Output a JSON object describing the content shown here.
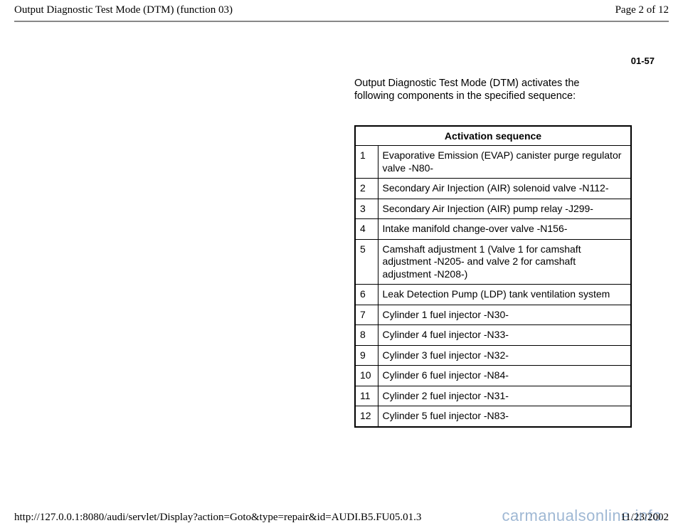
{
  "header": {
    "title": "Output Diagnostic Test Mode (DTM) (function 03)",
    "page_label": "Page 2 of 12"
  },
  "section_number": "01-57",
  "intro_text": "Output Diagnostic Test Mode (DTM) activates the following components in the specified sequence:",
  "table": {
    "header": "Activation sequence",
    "rows": [
      {
        "n": "1",
        "desc": "Evaporative Emission (EVAP) canister purge regulator valve -N80-"
      },
      {
        "n": "2",
        "desc": "Secondary Air Injection (AIR) solenoid valve -N112-"
      },
      {
        "n": "3",
        "desc": "Secondary Air Injection (AIR) pump relay -J299-"
      },
      {
        "n": "4",
        "desc": "Intake manifold change-over valve -N156-"
      },
      {
        "n": "5",
        "desc": "Camshaft adjustment 1 (Valve 1 for camshaft adjustment -N205- and valve 2 for camshaft adjustment -N208-)"
      },
      {
        "n": "6",
        "desc": "Leak Detection Pump (LDP) tank ventilation system"
      },
      {
        "n": "7",
        "desc": "Cylinder 1 fuel injector -N30-"
      },
      {
        "n": "8",
        "desc": "Cylinder 4 fuel injector -N33-"
      },
      {
        "n": "9",
        "desc": "Cylinder 3 fuel injector -N32-"
      },
      {
        "n": "10",
        "desc": "Cylinder 6 fuel injector -N84-"
      },
      {
        "n": "11",
        "desc": "Cylinder 2 fuel injector -N31-"
      },
      {
        "n": "12",
        "desc": "Cylinder 5 fuel injector -N83-"
      }
    ]
  },
  "footer": {
    "url": "http://127.0.0.1:8080/audi/servlet/Display?action=Goto&type=repair&id=AUDI.B5.FU05.01.3",
    "date": "11/23/2002"
  },
  "watermark": "carmanualsonline.info"
}
